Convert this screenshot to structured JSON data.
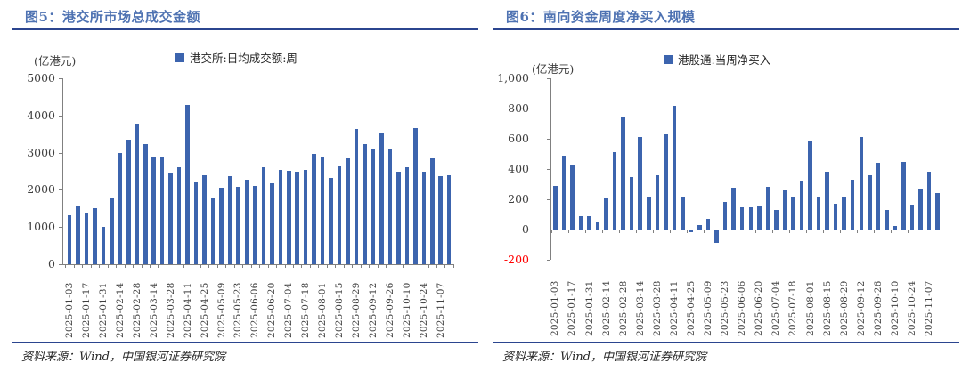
{
  "chart_data": [
    {
      "type": "bar",
      "title": "图5：港交所市场总成交金额",
      "unit_label": "(亿港元)",
      "legend": [
        "港交所:日均成交额:周"
      ],
      "source": "资料来源：Wind，中国银河证券研究院",
      "ylim": [
        0,
        5000
      ],
      "ytick_values": [
        0,
        1000,
        2000,
        3000,
        4000,
        5000
      ],
      "ytick_labels": [
        "0",
        "1000",
        "2000",
        "3000",
        "4000",
        "5000"
      ],
      "x_label_every": 2,
      "grid": false,
      "legend_position": "top",
      "x": [
        "2025-01-03",
        "2025-01-10",
        "2025-01-17",
        "2025-01-24",
        "2025-01-31",
        "2025-02-07",
        "2025-02-14",
        "2025-02-21",
        "2025-02-28",
        "2025-03-07",
        "2025-03-14",
        "2025-03-21",
        "2025-03-28",
        "2025-04-04",
        "2025-04-11",
        "2025-04-18",
        "2025-04-25",
        "2025-05-02",
        "2025-05-09",
        "2025-05-16",
        "2025-05-23",
        "2025-05-30",
        "2025-06-06",
        "2025-06-13",
        "2025-06-20",
        "2025-06-27",
        "2025-07-04",
        "2025-07-11",
        "2025-07-18",
        "2025-07-25",
        "2025-08-01",
        "2025-08-08",
        "2025-08-15",
        "2025-08-22",
        "2025-08-29",
        "2025-09-05",
        "2025-09-12",
        "2025-09-19",
        "2025-09-26",
        "2025-10-03",
        "2025-10-10",
        "2025-10-17",
        "2025-10-24",
        "2025-10-31",
        "2025-11-07",
        "2025-11-14"
      ],
      "values": [
        1320,
        1550,
        1380,
        1520,
        1000,
        1800,
        2980,
        3350,
        3780,
        3230,
        2870,
        2900,
        2440,
        2600,
        4280,
        2200,
        2390,
        1770,
        2060,
        2370,
        2080,
        2270,
        2100,
        2610,
        2180,
        2540,
        2510,
        2490,
        2540,
        2960,
        2880,
        2320,
        2640,
        2850,
        3640,
        3220,
        3090,
        3530,
        3100,
        2500,
        2600,
        3650,
        2480,
        2860,
        2370,
        2400
      ]
    },
    {
      "type": "bar",
      "title": "图6：南向资金周度净买入规模",
      "unit_label": "(亿港元)",
      "legend": [
        "港股通:当周净买入"
      ],
      "source": "资料来源：Wind，中国银河证券研究院",
      "ylim": [
        -200,
        1000
      ],
      "ytick_values": [
        -200,
        0,
        200,
        400,
        600,
        800,
        1000
      ],
      "ytick_labels": [
        "-200",
        "0",
        "200",
        "400",
        "600",
        "800",
        "1,000"
      ],
      "x_label_every": 2,
      "grid": false,
      "legend_position": "top",
      "x": [
        "2025-01-03",
        "2025-01-10",
        "2025-01-17",
        "2025-01-24",
        "2025-01-31",
        "2025-02-07",
        "2025-02-14",
        "2025-02-21",
        "2025-02-28",
        "2025-03-07",
        "2025-03-14",
        "2025-03-21",
        "2025-03-28",
        "2025-04-04",
        "2025-04-11",
        "2025-04-18",
        "2025-04-25",
        "2025-05-02",
        "2025-05-09",
        "2025-05-16",
        "2025-05-23",
        "2025-05-30",
        "2025-06-06",
        "2025-06-13",
        "2025-06-20",
        "2025-06-27",
        "2025-07-04",
        "2025-07-11",
        "2025-07-18",
        "2025-07-25",
        "2025-08-01",
        "2025-08-08",
        "2025-08-15",
        "2025-08-22",
        "2025-08-29",
        "2025-09-05",
        "2025-09-12",
        "2025-09-19",
        "2025-09-26",
        "2025-10-03",
        "2025-10-10",
        "2025-10-17",
        "2025-10-24",
        "2025-10-31",
        "2025-11-07",
        "2025-11-14"
      ],
      "values": [
        290,
        490,
        430,
        90,
        90,
        50,
        210,
        510,
        750,
        350,
        610,
        220,
        360,
        630,
        820,
        220,
        -15,
        30,
        70,
        -90,
        185,
        275,
        145,
        150,
        160,
        280,
        130,
        260,
        215,
        320,
        590,
        215,
        380,
        170,
        220,
        330,
        610,
        360,
        440,
        130,
        25,
        450,
        165,
        270,
        385,
        240
      ]
    }
  ],
  "colors": {
    "bar": "#3c64ae",
    "title": "#4e72b2",
    "rule": "#2b458f",
    "axis": "#808080",
    "tick_label": "#3f3f3f",
    "negative_tick_label": "#ff0000"
  }
}
